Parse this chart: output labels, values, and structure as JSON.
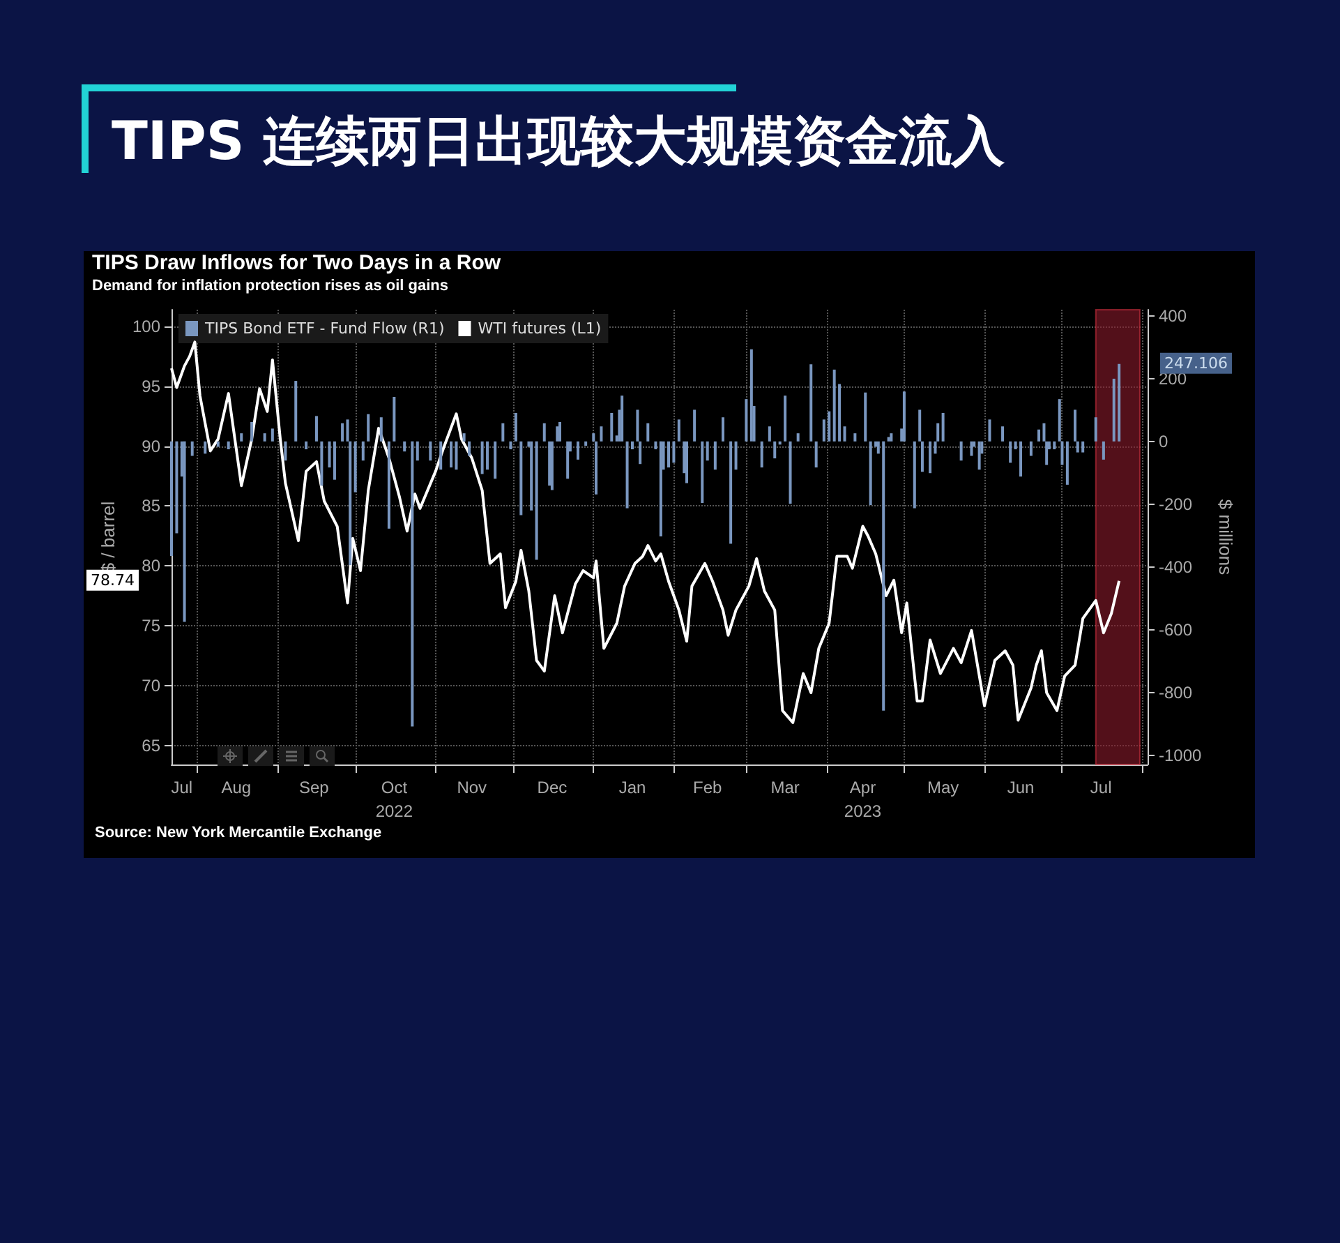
{
  "chart_data": {
    "type": "bar",
    "title": "TIPS 连续两日出现较大规模资金流入",
    "subtitle": "TIPS Draw Inflows for Two Days in a Row",
    "annotations": [
      "Demand for inflation protection rises as oil gains",
      "Source: New York Mercantile Exchange",
      "78.74",
      "247.106"
    ],
    "ylabel": "$ / barrel",
    "y2label": "$ millions",
    "xlim": [
      "2022-07-22",
      "2023-08-03"
    ],
    "xticks": [
      {
        "value": "2022-07-26",
        "label": "Jul"
      },
      {
        "value": "2022-08-01",
        "label": null
      },
      {
        "value": "2022-08-16",
        "label": "Aug"
      },
      {
        "value": "2022-09-01",
        "label": null
      },
      {
        "value": "2022-09-15",
        "label": "Sep"
      },
      {
        "value": "2022-10-01",
        "label": null
      },
      {
        "value": "2022-10-16",
        "label": "Oct\n2022"
      },
      {
        "value": "2022-11-01",
        "label": null
      },
      {
        "value": "2022-11-15",
        "label": "Nov"
      },
      {
        "value": "2022-12-01",
        "label": null
      },
      {
        "value": "2022-12-16",
        "label": "Dec"
      },
      {
        "value": "2023-01-01",
        "label": null
      },
      {
        "value": "2023-01-16",
        "label": "Jan"
      },
      {
        "value": "2023-02-01",
        "label": null
      },
      {
        "value": "2023-02-14",
        "label": "Feb"
      },
      {
        "value": "2023-03-01",
        "label": null
      },
      {
        "value": "2023-03-16",
        "label": "Mar"
      },
      {
        "value": "2023-04-01",
        "label": null
      },
      {
        "value": "2023-04-15",
        "label": "Apr\n2023"
      },
      {
        "value": "2023-05-01",
        "label": null
      },
      {
        "value": "2023-05-16",
        "label": "May"
      },
      {
        "value": "2023-06-01",
        "label": null
      },
      {
        "value": "2023-06-15",
        "label": "Jun"
      },
      {
        "value": "2023-07-01",
        "label": null
      },
      {
        "value": "2023-07-16",
        "label": "Jul"
      },
      {
        "value": "2023-08-01",
        "label": null
      }
    ],
    "ylim": [
      63.4,
      101.4
    ],
    "yticks": [
      65,
      70,
      75,
      80,
      85,
      90,
      95,
      100
    ],
    "y2lim": [
      -1030,
      420
    ],
    "y2ticks": [
      -1000,
      -800,
      -600,
      -400,
      -200,
      0,
      200,
      400
    ],
    "grid": true,
    "legend": "top left",
    "bands": [
      {
        "axis": "x",
        "from": "2023-07-14",
        "to": "2023-07-31",
        "color": "#8b1a2b"
      }
    ],
    "series": [
      {
        "name": "TIPS Bond ETF - Fund Flow (R1)",
        "axis": "y2",
        "color": "#7a97c0",
        "x": [
          "2022-07-22",
          "2022-07-24",
          "2022-07-26",
          "2022-07-27",
          "2022-07-30",
          "2022-08-04",
          "2022-08-09",
          "2022-08-13",
          "2022-08-18",
          "2022-08-22",
          "2022-08-27",
          "2022-08-30",
          "2022-09-04",
          "2022-09-08",
          "2022-09-12",
          "2022-09-16",
          "2022-09-18",
          "2022-09-21",
          "2022-09-23",
          "2022-09-26",
          "2022-09-28",
          "2022-09-29",
          "2022-10-01",
          "2022-10-04",
          "2022-10-06",
          "2022-10-11",
          "2022-10-14",
          "2022-10-16",
          "2022-10-20",
          "2022-10-23",
          "2022-10-25",
          "2022-10-30",
          "2022-11-03",
          "2022-11-07",
          "2022-11-09",
          "2022-11-12",
          "2022-11-14",
          "2022-11-19",
          "2022-11-21",
          "2022-11-24",
          "2022-11-27",
          "2022-11-30",
          "2022-12-02",
          "2022-12-04",
          "2022-12-07",
          "2022-12-08",
          "2022-12-10",
          "2022-12-13",
          "2022-12-15",
          "2022-12-16",
          "2022-12-18",
          "2022-12-19",
          "2022-12-22",
          "2022-12-23",
          "2022-12-26",
          "2022-12-29",
          "2023-01-01",
          "2023-01-02",
          "2023-01-04",
          "2023-01-08",
          "2023-01-10",
          "2023-01-11",
          "2023-01-12",
          "2023-01-14",
          "2023-01-16",
          "2023-01-18",
          "2023-01-19",
          "2023-01-22",
          "2023-01-25",
          "2023-01-27",
          "2023-01-28",
          "2023-01-30",
          "2023-02-01",
          "2023-02-03",
          "2023-02-05",
          "2023-02-06",
          "2023-02-09",
          "2023-02-12",
          "2023-02-14",
          "2023-02-17",
          "2023-02-20",
          "2023-02-23",
          "2023-02-25",
          "2023-03-01",
          "2023-03-03",
          "2023-03-04",
          "2023-03-07",
          "2023-03-10",
          "2023-03-12",
          "2023-03-14",
          "2023-03-16",
          "2023-03-18",
          "2023-03-21",
          "2023-03-26",
          "2023-03-28",
          "2023-03-31",
          "2023-04-02",
          "2023-04-04",
          "2023-04-06",
          "2023-04-08",
          "2023-04-12",
          "2023-04-16",
          "2023-04-18",
          "2023-04-20",
          "2023-04-21",
          "2023-04-23",
          "2023-04-25",
          "2023-04-26",
          "2023-04-30",
          "2023-05-01",
          "2023-05-05",
          "2023-05-07",
          "2023-05-08",
          "2023-05-11",
          "2023-05-13",
          "2023-05-14",
          "2023-05-16",
          "2023-05-23",
          "2023-05-27",
          "2023-05-28",
          "2023-05-30",
          "2023-05-31",
          "2023-06-03",
          "2023-06-08",
          "2023-06-11",
          "2023-06-13",
          "2023-06-15",
          "2023-06-19",
          "2023-06-22",
          "2023-06-24",
          "2023-06-25",
          "2023-06-26",
          "2023-06-28",
          "2023-06-30",
          "2023-07-01",
          "2023-07-03",
          "2023-07-06",
          "2023-07-07",
          "2023-07-09",
          "2023-07-14",
          "2023-07-17",
          "2023-07-21",
          "2023-07-23"
        ],
        "values": [
          -365,
          -293,
          -112,
          -575,
          -46,
          -39,
          -17,
          -25,
          26,
          62,
          26,
          41,
          -61,
          193,
          -25,
          81,
          -141,
          -83,
          -122,
          58,
          70,
          -394,
          -162,
          -61,
          87,
          77,
          -278,
          142,
          -32,
          -909,
          -61,
          -61,
          -90,
          -83,
          -90,
          26,
          -46,
          -104,
          -90,
          -119,
          58,
          -25,
          91,
          -235,
          -17,
          -220,
          -377,
          58,
          -141,
          -155,
          48,
          62,
          -119,
          -32,
          -58,
          -14,
          26,
          -169,
          48,
          91,
          19,
          101,
          146,
          -213,
          -25,
          101,
          -72,
          58,
          -25,
          -303,
          -90,
          -83,
          -68,
          70,
          -101,
          -133,
          101,
          -196,
          -61,
          -90,
          77,
          -326,
          -90,
          135,
          294,
          113,
          -83,
          48,
          -54,
          -10,
          146,
          -199,
          26,
          246,
          -83,
          70,
          96,
          229,
          183,
          48,
          26,
          156,
          -203,
          -17,
          -39,
          -858,
          14,
          26,
          41,
          159,
          -213,
          101,
          -97,
          -101,
          -39,
          58,
          91,
          -61,
          -46,
          -17,
          -90,
          -39,
          70,
          48,
          -68,
          -25,
          -112,
          -46,
          38,
          58,
          -75,
          -25,
          -25,
          135,
          -75,
          -138,
          101,
          -35,
          -35,
          77,
          -58,
          200,
          247.106
        ]
      },
      {
        "name": "WTI futures (L1)",
        "type": "line",
        "color": "#ffffff",
        "marker": "none",
        "x": [
          "2022-07-22",
          "2022-07-24",
          "2022-07-27",
          "2022-07-29",
          "2022-07-31",
          "2022-08-02",
          "2022-08-06",
          "2022-08-09",
          "2022-08-13",
          "2022-08-18",
          "2022-08-22",
          "2022-08-25",
          "2022-08-28",
          "2022-08-30",
          "2022-09-02",
          "2022-09-04",
          "2022-09-09",
          "2022-09-12",
          "2022-09-16",
          "2022-09-19",
          "2022-09-24",
          "2022-09-28",
          "2022-09-30",
          "2022-10-03",
          "2022-10-06",
          "2022-10-10",
          "2022-10-14",
          "2022-10-18",
          "2022-10-21",
          "2022-10-24",
          "2022-10-26",
          "2022-11-01",
          "2022-11-04",
          "2022-11-09",
          "2022-11-11",
          "2022-11-15",
          "2022-11-19",
          "2022-11-22",
          "2022-11-26",
          "2022-11-28",
          "2022-12-02",
          "2022-12-04",
          "2022-12-07",
          "2022-12-10",
          "2022-12-13",
          "2022-12-17",
          "2022-12-20",
          "2022-12-25",
          "2022-12-28",
          "2023-01-01",
          "2023-01-02",
          "2023-01-05",
          "2023-01-10",
          "2023-01-13",
          "2023-01-17",
          "2023-01-20",
          "2023-01-22",
          "2023-01-25",
          "2023-01-27",
          "2023-01-30",
          "2023-02-03",
          "2023-02-06",
          "2023-02-08",
          "2023-02-13",
          "2023-02-16",
          "2023-02-20",
          "2023-02-22",
          "2023-02-25",
          "2023-03-02",
          "2023-03-05",
          "2023-03-08",
          "2023-03-12",
          "2023-03-15",
          "2023-03-19",
          "2023-03-23",
          "2023-03-26",
          "2023-03-29",
          "2023-04-02",
          "2023-04-05",
          "2023-04-09",
          "2023-04-11",
          "2023-04-15",
          "2023-04-17",
          "2023-04-20",
          "2023-04-24",
          "2023-04-27",
          "2023-04-30",
          "2023-05-02",
          "2023-05-06",
          "2023-05-08",
          "2023-05-11",
          "2023-05-15",
          "2023-05-20",
          "2023-05-23",
          "2023-05-27",
          "2023-06-01",
          "2023-06-05",
          "2023-06-09",
          "2023-06-12",
          "2023-06-14",
          "2023-06-19",
          "2023-06-21",
          "2023-06-23",
          "2023-06-25",
          "2023-06-29",
          "2023-07-02",
          "2023-07-06",
          "2023-07-09",
          "2023-07-14",
          "2023-07-17",
          "2023-07-20",
          "2023-07-23"
        ],
        "values": [
          96.5,
          94.9,
          96.7,
          97.5,
          98.7,
          94.2,
          89.6,
          90.6,
          94.4,
          86.7,
          90.6,
          94.8,
          92.9,
          97.2,
          90.6,
          86.9,
          82.1,
          87.9,
          88.7,
          85.4,
          83.3,
          76.9,
          82.3,
          79.6,
          86.3,
          91.5,
          89.0,
          85.8,
          82.9,
          86.0,
          84.8,
          87.9,
          89.8,
          92.7,
          90.6,
          89.0,
          86.3,
          80.2,
          81.0,
          76.5,
          78.7,
          81.3,
          77.9,
          72.1,
          71.2,
          77.5,
          74.4,
          78.5,
          79.6,
          79.0,
          80.4,
          73.1,
          75.2,
          78.3,
          80.2,
          80.8,
          81.7,
          80.4,
          81.0,
          78.7,
          76.3,
          73.7,
          78.3,
          80.2,
          78.7,
          76.3,
          74.2,
          76.3,
          78.3,
          80.6,
          77.9,
          76.3,
          67.9,
          66.9,
          71.0,
          69.4,
          73.1,
          75.2,
          80.8,
          80.8,
          79.8,
          83.3,
          82.5,
          81.0,
          77.5,
          78.8,
          74.4,
          76.9,
          68.7,
          68.7,
          73.8,
          71.0,
          73.1,
          71.9,
          74.6,
          68.3,
          72.1,
          72.9,
          71.7,
          67.1,
          69.8,
          71.7,
          72.9,
          69.4,
          67.9,
          70.8,
          71.7,
          75.6,
          77.1,
          74.4,
          76.0,
          78.74
        ]
      }
    ]
  }
}
